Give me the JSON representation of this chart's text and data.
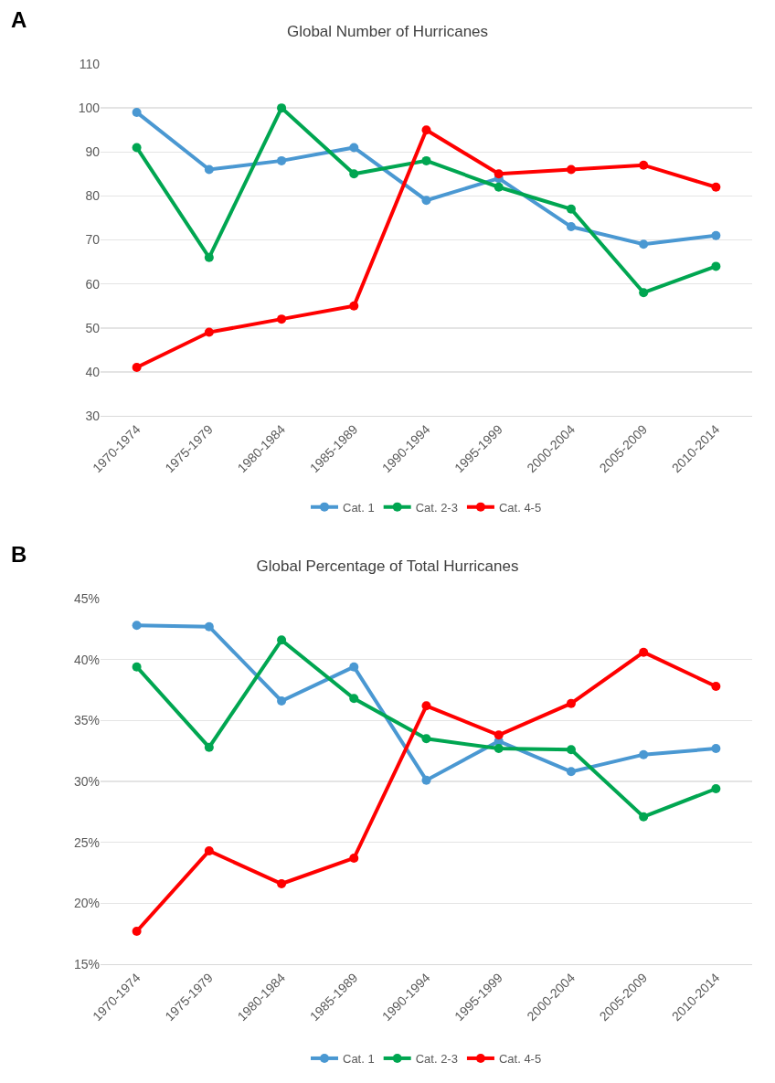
{
  "chart_data": [
    {
      "type": "line",
      "title": "Global Number of Hurricanes",
      "annotations": [
        "A"
      ],
      "categories": [
        "1970-1974",
        "1975-1979",
        "1980-1984",
        "1985-1989",
        "1990-1994",
        "1995-1999",
        "2000-2004",
        "2005-2009",
        "2010-2014"
      ],
      "series": [
        {
          "name": "Cat. 1",
          "color": "#4a98d2",
          "values": [
            99,
            86,
            88,
            91,
            79,
            84,
            73,
            69,
            71
          ]
        },
        {
          "name": "Cat. 2-3",
          "color": "#00a651",
          "values": [
            91,
            66,
            100,
            85,
            88,
            82,
            77,
            58,
            64
          ]
        },
        {
          "name": "Cat. 4-5",
          "color": "#ff0000",
          "values": [
            41,
            49,
            52,
            55,
            95,
            85,
            86,
            87,
            82
          ]
        }
      ],
      "ylim": [
        30,
        110
      ],
      "yticks": [
        30,
        40,
        50,
        60,
        70,
        80,
        90,
        100,
        110
      ],
      "grid": "y",
      "legend": "bottom",
      "marker": "circle",
      "line_style": "solid"
    },
    {
      "type": "line",
      "title": "Global Percentage of Total Hurricanes",
      "annotations": [
        "B"
      ],
      "categories": [
        "1970-1974",
        "1975-1979",
        "1980-1984",
        "1985-1989",
        "1990-1994",
        "1995-1999",
        "2000-2004",
        "2005-2009",
        "2010-2014"
      ],
      "series": [
        {
          "name": "Cat. 1",
          "color": "#4a98d2",
          "values": [
            42.8,
            42.7,
            36.6,
            39.4,
            30.1,
            33.3,
            30.8,
            32.2,
            32.7
          ]
        },
        {
          "name": "Cat. 2-3",
          "color": "#00a651",
          "values": [
            39.4,
            32.8,
            41.6,
            36.8,
            33.5,
            32.7,
            32.6,
            27.1,
            29.4
          ]
        },
        {
          "name": "Cat. 4-5",
          "color": "#ff0000",
          "values": [
            17.7,
            24.3,
            21.6,
            23.7,
            36.2,
            33.8,
            36.4,
            40.6,
            37.8
          ]
        }
      ],
      "ylim": [
        15,
        45
      ],
      "yticks": [
        {
          "value": 15,
          "label": "15%"
        },
        {
          "value": 20,
          "label": "20%"
        },
        {
          "value": 25,
          "label": "25%"
        },
        {
          "value": 30,
          "label": "30%"
        },
        {
          "value": 35,
          "label": "35%"
        },
        {
          "value": 40,
          "label": "40%"
        },
        {
          "value": 45,
          "label": "45%"
        }
      ],
      "grid": "y",
      "legend": "bottom",
      "marker": "circle",
      "line_style": "solid"
    }
  ]
}
